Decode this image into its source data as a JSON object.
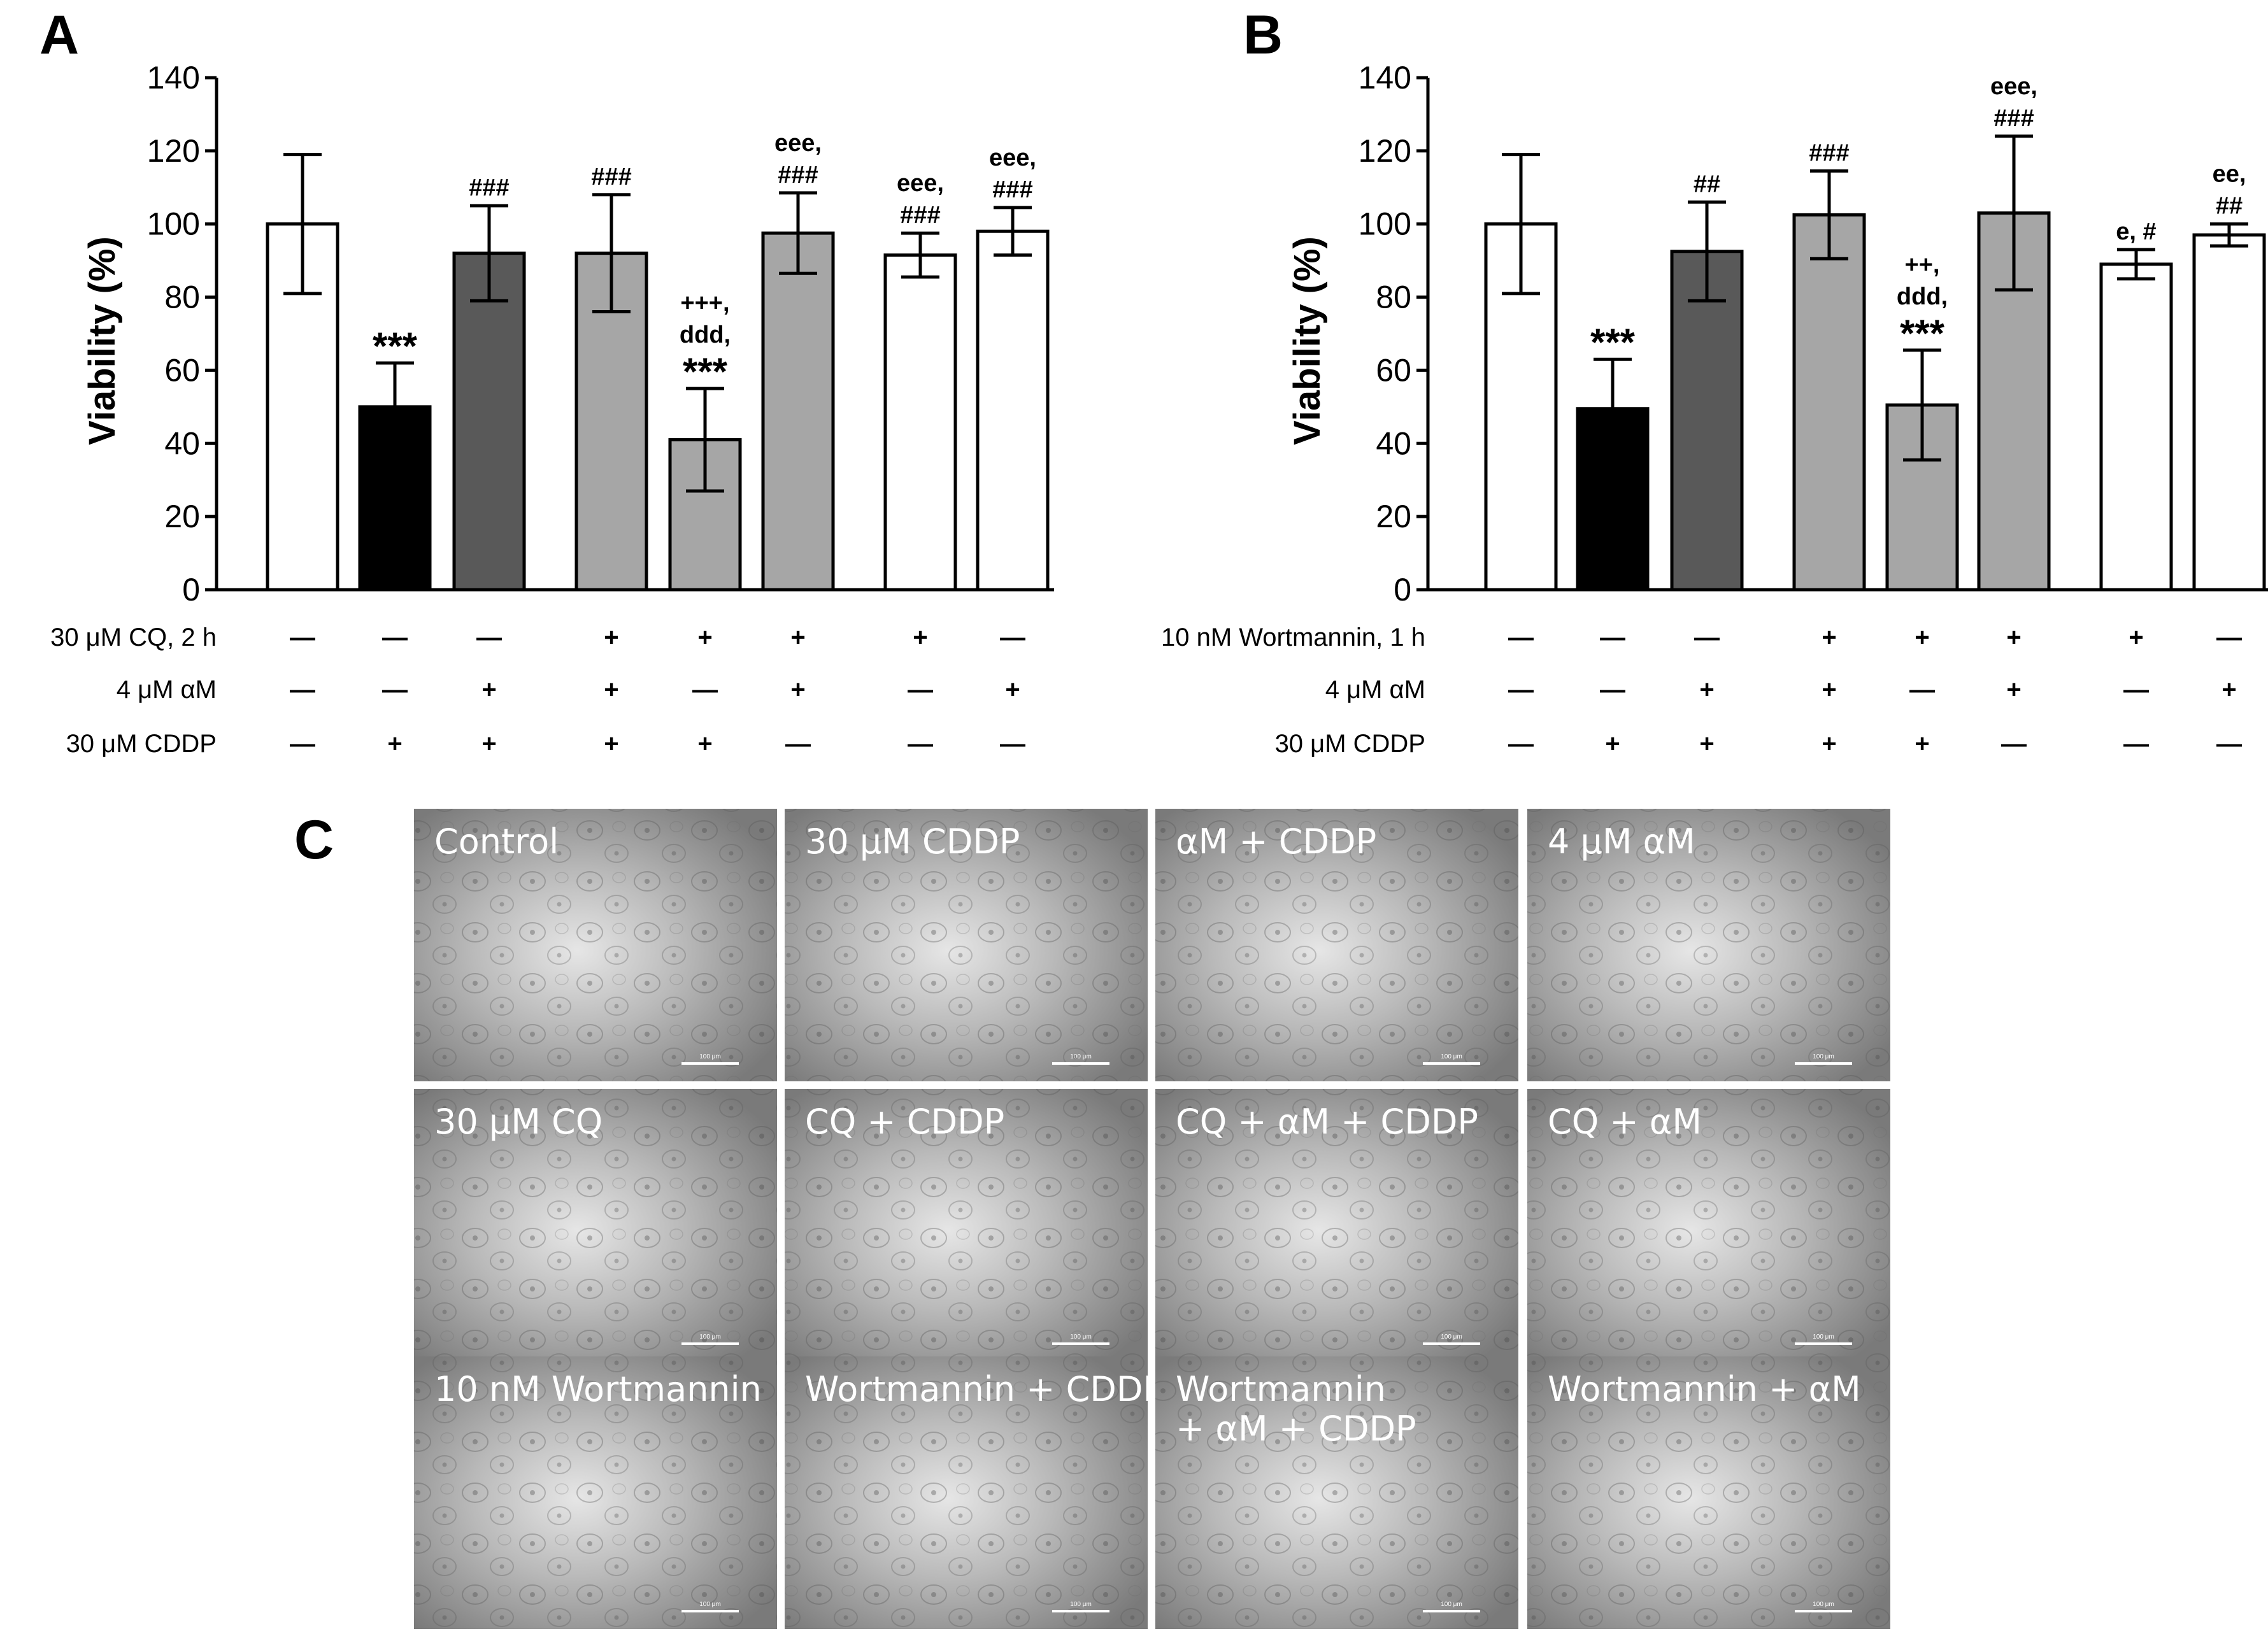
{
  "panels": {
    "A": {
      "letter": "A",
      "chart_data": {
        "type": "bar",
        "ylabel": "Viability (%)",
        "ylim": [
          0,
          140
        ],
        "yticks": [
          0,
          20,
          40,
          60,
          80,
          100,
          120,
          140
        ],
        "bars": [
          {
            "value": 100,
            "error": 19,
            "fill": "#ffffff",
            "annotations": []
          },
          {
            "value": 50,
            "error": 12,
            "fill": "#000000",
            "annotations": [
              "***"
            ]
          },
          {
            "value": 92,
            "error": 13,
            "fill": "#595959",
            "annotations": [
              "###"
            ]
          },
          {
            "value": 92,
            "error": 16,
            "fill": "#a6a6a6",
            "annotations": [
              "###"
            ]
          },
          {
            "value": 41,
            "error": 14,
            "fill": "#a6a6a6",
            "annotations": [
              "+++,",
              "ddd,",
              "***"
            ]
          },
          {
            "value": 97.5,
            "error": 11,
            "fill": "#a6a6a6",
            "annotations": [
              "eee,",
              "###"
            ]
          },
          {
            "value": 91.5,
            "error": 6,
            "fill": "#ffffff",
            "annotations": [
              "eee,",
              "###"
            ]
          },
          {
            "value": 98,
            "error": 6.5,
            "fill": "#ffffff",
            "annotations": [
              "eee,",
              "###"
            ]
          }
        ]
      },
      "treatments": [
        {
          "label": "30 μM CQ, 2 h",
          "signs": [
            "—",
            "—",
            "—",
            "+",
            "+",
            "+",
            "+",
            "—"
          ]
        },
        {
          "label": "4 μM αM",
          "signs": [
            "—",
            "—",
            "+",
            "+",
            "—",
            "+",
            "—",
            "+"
          ]
        },
        {
          "label": "30 μM CDDP",
          "signs": [
            "—",
            "+",
            "+",
            "+",
            "+",
            "—",
            "—",
            "—"
          ]
        }
      ]
    },
    "B": {
      "letter": "B",
      "chart_data": {
        "type": "bar",
        "ylabel": "Viability (%)",
        "ylim": [
          0,
          140
        ],
        "yticks": [
          0,
          20,
          40,
          60,
          80,
          100,
          120,
          140
        ],
        "bars": [
          {
            "value": 100,
            "error": 19,
            "fill": "#ffffff",
            "annotations": []
          },
          {
            "value": 49.5,
            "error": 13.5,
            "fill": "#000000",
            "annotations": [
              "***"
            ]
          },
          {
            "value": 92.5,
            "error": 13.5,
            "fill": "#595959",
            "annotations": [
              "##"
            ]
          },
          {
            "value": 102.5,
            "error": 12,
            "fill": "#a6a6a6",
            "annotations": [
              "###"
            ]
          },
          {
            "value": 50.5,
            "error": 15,
            "fill": "#a6a6a6",
            "annotations": [
              "++,",
              "ddd,",
              "***"
            ]
          },
          {
            "value": 103,
            "error": 21,
            "fill": "#a6a6a6",
            "annotations": [
              "eee,",
              "###"
            ]
          },
          {
            "value": 89,
            "error": 4,
            "fill": "#ffffff",
            "annotations": [
              "e, #"
            ]
          },
          {
            "value": 97,
            "error": 3,
            "fill": "#ffffff",
            "annotations": [
              "ee,",
              "##"
            ]
          }
        ]
      },
      "treatments": [
        {
          "label": "10 nM Wortmannin, 1 h",
          "signs": [
            "—",
            "—",
            "—",
            "+",
            "+",
            "+",
            "+",
            "—"
          ]
        },
        {
          "label": "4 μM αM",
          "signs": [
            "—",
            "—",
            "+",
            "+",
            "—",
            "+",
            "—",
            "+"
          ]
        },
        {
          "label": "30 μM CDDP",
          "signs": [
            "—",
            "+",
            "+",
            "+",
            "+",
            "—",
            "—",
            "—"
          ]
        }
      ]
    },
    "C": {
      "letter": "C",
      "scale_bar_text": "100 μm",
      "images": [
        [
          [
            "Control"
          ],
          [
            "30 μM CDDP"
          ],
          [
            "αM + CDDP"
          ],
          [
            "4 μM αM"
          ]
        ],
        [
          [
            "30 μM CQ"
          ],
          [
            "CQ + CDDP"
          ],
          [
            "CQ + αM + CDDP"
          ],
          [
            "CQ + αM"
          ]
        ],
        [
          [
            "10 nM Wortmannin"
          ],
          [
            "Wortmannin + CDDP"
          ],
          [
            "Wortmannin",
            " + αM + CDDP"
          ],
          [
            "Wortmannin + αM"
          ]
        ]
      ]
    }
  }
}
